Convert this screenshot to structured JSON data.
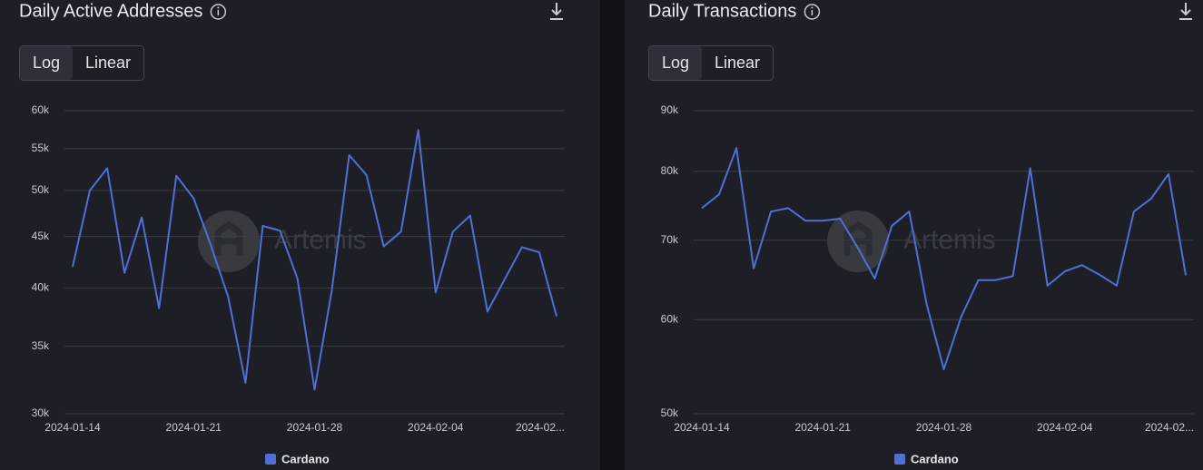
{
  "chart_data": [
    {
      "type": "line",
      "title": "Daily Active Addresses",
      "scale_options": [
        "Log",
        "Linear"
      ],
      "log_scale": true,
      "watermark": "Artemis",
      "x": [
        "2024-01-14",
        "2024-01-15",
        "2024-01-16",
        "2024-01-17",
        "2024-01-18",
        "2024-01-19",
        "2024-01-20",
        "2024-01-21",
        "2024-01-22",
        "2024-01-23",
        "2024-01-24",
        "2024-01-25",
        "2024-01-26",
        "2024-01-27",
        "2024-01-28",
        "2024-01-29",
        "2024-01-30",
        "2024-01-31",
        "2024-02-01",
        "2024-02-02",
        "2024-02-03",
        "2024-02-04",
        "2024-02-05",
        "2024-02-06",
        "2024-02-07",
        "2024-02-08",
        "2024-02-09",
        "2024-02-10",
        "2024-02-11"
      ],
      "series": [
        {
          "name": "Cardano",
          "color": "#4f6fd6",
          "values": [
            42000,
            50000,
            52600,
            41400,
            47000,
            38200,
            51700,
            49100,
            44100,
            39200,
            32200,
            46100,
            45600,
            40900,
            31700,
            39800,
            54200,
            51800,
            44000,
            45500,
            57400,
            39600,
            45500,
            47200,
            37900,
            40800,
            43900,
            43400,
            37500
          ]
        }
      ],
      "xlim": [
        "2024-01-14",
        "2024-02-11"
      ],
      "xticks": [
        "2024-01-14",
        "2024-01-21",
        "2024-01-28",
        "2024-02-04",
        {
          "value": "2024-02-11",
          "label": "2024-02..."
        }
      ],
      "ylim": [
        30000,
        60000
      ],
      "yticks": [
        {
          "value": 30000,
          "label": "30k"
        },
        {
          "value": 35000,
          "label": "35k"
        },
        {
          "value": 40000,
          "label": "40k"
        },
        {
          "value": 45000,
          "label": "45k"
        },
        {
          "value": 50000,
          "label": "50k"
        },
        {
          "value": 55000,
          "label": "55k"
        },
        {
          "value": 60000,
          "label": "60k"
        }
      ],
      "grid": true
    },
    {
      "type": "line",
      "title": "Daily Transactions",
      "scale_options": [
        "Log",
        "Linear"
      ],
      "log_scale": true,
      "watermark": "Artemis",
      "x": [
        "2024-01-14",
        "2024-01-15",
        "2024-01-16",
        "2024-01-17",
        "2024-01-18",
        "2024-01-19",
        "2024-01-20",
        "2024-01-21",
        "2024-01-22",
        "2024-01-23",
        "2024-01-24",
        "2024-01-25",
        "2024-01-26",
        "2024-01-27",
        "2024-01-28",
        "2024-01-29",
        "2024-01-30",
        "2024-01-31",
        "2024-02-01",
        "2024-02-02",
        "2024-02-03",
        "2024-02-04",
        "2024-02-05",
        "2024-02-06",
        "2024-02-07",
        "2024-02-08",
        "2024-02-09",
        "2024-02-10",
        "2024-02-11"
      ],
      "series": [
        {
          "name": "Cardano",
          "color": "#4f6fd6",
          "values": [
            74500,
            76500,
            83700,
            66300,
            74000,
            74500,
            72700,
            72700,
            73000,
            69100,
            65000,
            72000,
            74000,
            61900,
            54500,
            60300,
            64800,
            64800,
            65300,
            80500,
            64100,
            65900,
            66700,
            65500,
            64100,
            74000,
            75900,
            79600,
            65400
          ]
        }
      ],
      "xlim": [
        "2024-01-14",
        "2024-02-11"
      ],
      "xticks": [
        "2024-01-14",
        "2024-01-21",
        "2024-01-28",
        "2024-02-04",
        {
          "value": "2024-02-11",
          "label": "2024-02..."
        }
      ],
      "ylim": [
        50000,
        90000
      ],
      "yticks": [
        {
          "value": 50000,
          "label": "50k"
        },
        {
          "value": 60000,
          "label": "60k"
        },
        {
          "value": 70000,
          "label": "70k"
        },
        {
          "value": 80000,
          "label": "80k"
        },
        {
          "value": 90000,
          "label": "90k"
        }
      ],
      "grid": true
    }
  ]
}
